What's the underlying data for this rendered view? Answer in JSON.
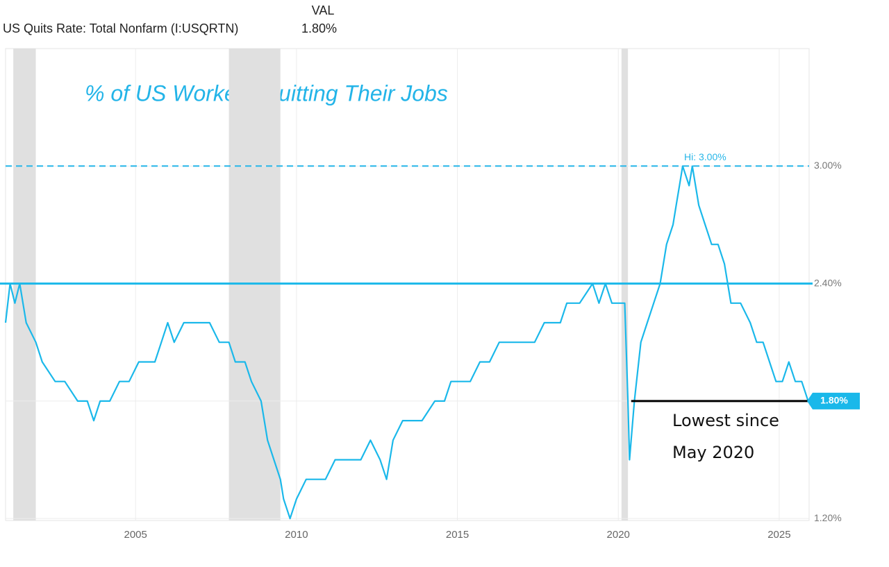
{
  "header": {
    "column": "VAL",
    "series_name": "US Quits Rate: Total Nonfarm (I:USQRTN)",
    "value": "1.80%"
  },
  "chart_data": {
    "type": "line",
    "title": "% of US Workers Quitting Their Jobs",
    "x": [
      2000.96,
      2001.1,
      2001.25,
      2001.4,
      2001.6,
      2001.9,
      2002.1,
      2002.5,
      2002.8,
      2003.2,
      2003.5,
      2003.7,
      2003.9,
      2004.2,
      2004.5,
      2004.8,
      2005.1,
      2005.4,
      2005.6,
      2005.8,
      2006.0,
      2006.2,
      2006.5,
      2006.9,
      2007.3,
      2007.6,
      2007.9,
      2008.1,
      2008.4,
      2008.6,
      2008.9,
      2009.1,
      2009.3,
      2009.5,
      2009.6,
      2009.8,
      2010.0,
      2010.3,
      2010.6,
      2010.9,
      2011.2,
      2011.6,
      2012.0,
      2012.3,
      2012.6,
      2012.8,
      2013.0,
      2013.3,
      2013.6,
      2013.9,
      2014.3,
      2014.6,
      2014.8,
      2015.1,
      2015.4,
      2015.7,
      2016.0,
      2016.3,
      2016.6,
      2017.0,
      2017.4,
      2017.7,
      2018.0,
      2018.2,
      2018.4,
      2018.8,
      2019.2,
      2019.4,
      2019.6,
      2019.8,
      2020.2,
      2020.3,
      2020.35,
      2020.5,
      2020.7,
      2020.9,
      2021.1,
      2021.3,
      2021.5,
      2021.7,
      2021.8,
      2021.9,
      2022.0,
      2022.2,
      2022.3,
      2022.5,
      2022.7,
      2022.9,
      2023.1,
      2023.3,
      2023.5,
      2023.8,
      2024.1,
      2024.3,
      2024.5,
      2024.7,
      2024.9,
      2025.1,
      2025.3,
      2025.5,
      2025.7,
      2025.9
    ],
    "series": [
      {
        "name": "US Quits Rate: Total Nonfarm (I:USQRTN)",
        "color": "#1ab8ea",
        "values": [
          2.2,
          2.4,
          2.3,
          2.4,
          2.2,
          2.1,
          2.0,
          1.9,
          1.9,
          1.8,
          1.8,
          1.7,
          1.8,
          1.8,
          1.9,
          1.9,
          2.0,
          2.0,
          2.0,
          2.1,
          2.2,
          2.1,
          2.2,
          2.2,
          2.2,
          2.1,
          2.1,
          2.0,
          2.0,
          1.9,
          1.8,
          1.6,
          1.5,
          1.4,
          1.3,
          1.2,
          1.3,
          1.4,
          1.4,
          1.4,
          1.5,
          1.5,
          1.5,
          1.6,
          1.5,
          1.4,
          1.6,
          1.7,
          1.7,
          1.7,
          1.8,
          1.8,
          1.9,
          1.9,
          1.9,
          2.0,
          2.0,
          2.1,
          2.1,
          2.1,
          2.1,
          2.2,
          2.2,
          2.2,
          2.3,
          2.3,
          2.4,
          2.3,
          2.4,
          2.3,
          2.3,
          1.8,
          1.5,
          1.8,
          2.1,
          2.2,
          2.3,
          2.4,
          2.6,
          2.7,
          2.8,
          2.9,
          3.0,
          2.9,
          3.0,
          2.8,
          2.7,
          2.6,
          2.6,
          2.5,
          2.3,
          2.3,
          2.2,
          2.1,
          2.1,
          2.0,
          1.9,
          1.9,
          2.0,
          1.9,
          1.9,
          1.8
        ]
      }
    ],
    "xlim": [
      2000.96,
      2025.93
    ],
    "xticks": [
      2005,
      2010,
      2015,
      2020,
      2025
    ],
    "ylim": [
      1.19,
      3.6
    ],
    "yticks": [
      {
        "value": 1.2,
        "label": "1.20%"
      },
      {
        "value": 1.8,
        "label": "1.80%"
      },
      {
        "value": 2.4,
        "label": "2.40%"
      },
      {
        "value": 3.0,
        "label": "3.00%"
      }
    ],
    "grid": true,
    "recessions": [
      [
        2001.2,
        2001.9
      ],
      [
        2007.9,
        2009.5
      ],
      [
        2020.1,
        2020.3
      ]
    ],
    "high": {
      "value": 3.0,
      "label": "Hi: 3.00%"
    },
    "reference_line": 2.4,
    "current": {
      "value": 1.8,
      "label": "1.80%"
    },
    "low_line": {
      "value": 1.8,
      "x": [
        2020.4,
        2025.9
      ],
      "label_lines": [
        "Lowest since",
        "May 2020"
      ]
    }
  }
}
